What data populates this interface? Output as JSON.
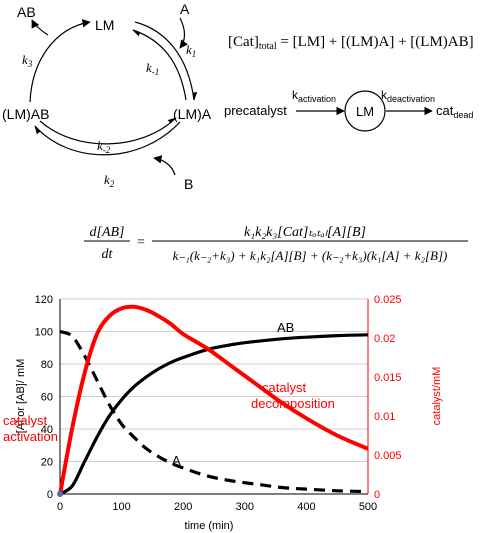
{
  "cycle": {
    "nodes": {
      "lm": "LM",
      "lma": "(LM)A",
      "lmab": "(LM)AB"
    },
    "species": {
      "a": "A",
      "b": "B",
      "ab": "AB"
    },
    "rates": {
      "k1": "k",
      "k1_sub": "1",
      "km1": "k",
      "km1_sub": "-1",
      "k2": "k",
      "k2_sub": "2",
      "km2": "k",
      "km2_sub": "-2",
      "k3": "k",
      "k3_sub": "3"
    }
  },
  "total_eq": {
    "lhs": "[Cat]",
    "lhs_sub": "total",
    "rhs": " = [LM] + [(LM)A] + [(LM)AB]"
  },
  "activation": {
    "precatalyst": "precatalyst",
    "k_act": "k",
    "k_act_sub": "activation",
    "lm": "LM",
    "k_deact": "k",
    "k_deact_sub": "deactivation",
    "dead": "cat",
    "dead_sub": "dead"
  },
  "rate_eq": {
    "lhs_num": "d[AB]",
    "lhs_den": "dt",
    "num": "k₁k₂k₃[Cat]ₜₒₜₐₗ[A][B]",
    "den": "k₋₁(k₋₂+k₃) + k₁k₂[A][B] + (k₋₂+k₃)(k₁[A] + k₂[B])"
  },
  "chart_data": {
    "type": "line",
    "xlabel": "time (min)",
    "ylabel_left": "[A] or [AB]/ mM",
    "ylabel_right": "catalyst/mM",
    "xlim": [
      0,
      500
    ],
    "ylim_left": [
      0,
      120
    ],
    "ylim_right": [
      0,
      0.025
    ],
    "x_ticks": [
      "0",
      "100",
      "200",
      "300",
      "400",
      "500"
    ],
    "y_ticks_left": [
      "0",
      "20",
      "40",
      "60",
      "80",
      "100",
      "120"
    ],
    "y_ticks_right": [
      "0",
      "0.005",
      "0.01",
      "0.015",
      "0.02",
      "0.025"
    ],
    "x": [
      0,
      20,
      40,
      60,
      80,
      100,
      120,
      140,
      160,
      180,
      200,
      240,
      280,
      320,
      360,
      400,
      450,
      500
    ],
    "series": [
      {
        "name": "AB",
        "axis": "left",
        "color": "#000000",
        "dash": false,
        "values": [
          0,
          5,
          20,
          35,
          48,
          58,
          66,
          72,
          77,
          81,
          84,
          89,
          92,
          94,
          95.5,
          96.5,
          97.5,
          98
        ]
      },
      {
        "name": "A",
        "axis": "left",
        "color": "#000000",
        "dash": true,
        "values": [
          100,
          97,
          85,
          70,
          55,
          43,
          35,
          28,
          23,
          19,
          16,
          11,
          8,
          6,
          4,
          3,
          2,
          1.5
        ]
      },
      {
        "name": "",
        "axis": "right",
        "color": "#ff0000",
        "dash": false,
        "values": [
          0,
          0.0085,
          0.0155,
          0.0205,
          0.0228,
          0.0238,
          0.024,
          0.0236,
          0.0228,
          0.0218,
          0.0205,
          0.0186,
          0.0163,
          0.014,
          0.0117,
          0.0097,
          0.0075,
          0.0058
        ]
      }
    ],
    "annotations": {
      "ab": "AB",
      "a": "A",
      "act1": "catalyst",
      "act2": "activation",
      "dec1": "catalyst",
      "dec2": "decomposition"
    },
    "colors": {
      "red": "#ff0000",
      "black": "#000000",
      "grid": "#bfbfbf"
    }
  }
}
